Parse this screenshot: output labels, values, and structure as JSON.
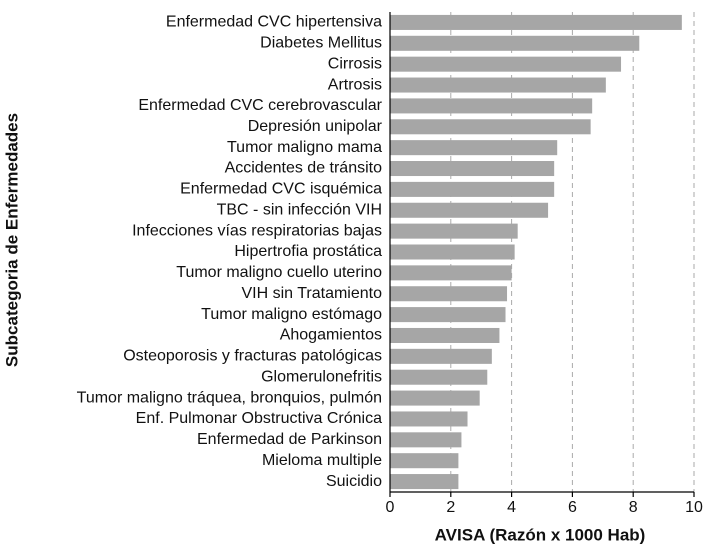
{
  "chart_data": {
    "type": "barh",
    "xlabel": "AVISA (Razón x 1000 Hab)",
    "ylabel": "Subcategoria de Enfermedades",
    "categories": [
      "Enfermedad CVC hipertensiva",
      "Diabetes Mellitus",
      "Cirrosis",
      "Artrosis",
      "Enfermedad CVC cerebrovascular",
      "Depresión unipolar",
      "Tumor maligno mama",
      "Accidentes de tránsito",
      "Enfermedad CVC isquémica",
      "TBC - sin infección VIH",
      "Infecciones vías respiratorias bajas",
      "Hipertrofia prostática",
      "Tumor maligno cuello uterino",
      "VIH sin Tratamiento",
      "Tumor maligno estómago",
      "Ahogamientos",
      "Osteoporosis y fracturas patológicas",
      "Glomerulonefritis",
      "Tumor maligno tráquea, bronquios, pulmón",
      "Enf. Pulmonar Obstructiva Crónica",
      "Enfermedad de Parkinson",
      "Mieloma multiple",
      "Suicidio"
    ],
    "values": [
      9.6,
      8.2,
      7.6,
      7.1,
      6.65,
      6.6,
      5.5,
      5.4,
      5.4,
      5.2,
      4.2,
      4.1,
      4.0,
      3.85,
      3.8,
      3.6,
      3.35,
      3.2,
      2.95,
      2.55,
      2.35,
      2.25,
      2.25
    ],
    "color": "#a6a6a6",
    "xlim": [
      0,
      10
    ],
    "xticks": [
      0,
      2,
      4,
      6,
      8,
      10
    ],
    "grid": true
  }
}
